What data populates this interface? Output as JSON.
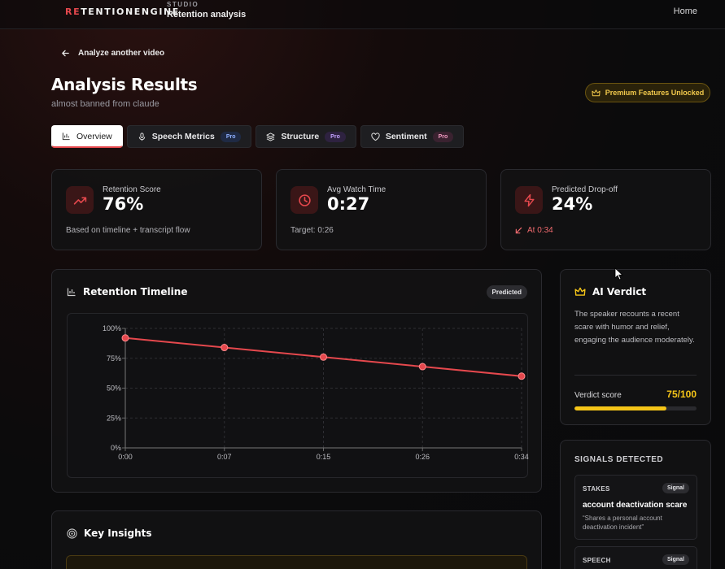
{
  "topbar": {
    "brand_accent": "RE",
    "brand_rest": "TENTIONENGINE",
    "studio_label": "STUDIO",
    "section": "Retention analysis",
    "home_label": "Home"
  },
  "header": {
    "back_label": "Analyze another video",
    "title": "Analysis Results",
    "subtitle": "almost banned from claude",
    "premium_label": "Premium Features Unlocked"
  },
  "tabs": [
    {
      "label": "Overview",
      "icon": "bar-chart-icon",
      "active": true
    },
    {
      "label": "Speech Metrics",
      "icon": "mic-icon",
      "badge": "Pro"
    },
    {
      "label": "Structure",
      "icon": "layers-icon",
      "badge": "Pro"
    },
    {
      "label": "Sentiment",
      "icon": "heart-icon",
      "badge": "Pro"
    }
  ],
  "stats": [
    {
      "label": "Retention Score",
      "value": "76%",
      "note": "Based on timeline + transcript flow",
      "icon": "trending-up-icon"
    },
    {
      "label": "Avg Watch Time",
      "value": "0:27",
      "note": "Target: 0:26",
      "icon": "clock-icon"
    },
    {
      "label": "Predicted Drop-off",
      "value": "24%",
      "note": "At 0:34",
      "icon": "zap-icon"
    }
  ],
  "timeline": {
    "title": "Retention Timeline",
    "badge": "Predicted"
  },
  "chart_data": {
    "type": "line",
    "title": "",
    "xlabel": "",
    "ylabel": "",
    "x": [
      "0:00",
      "0:07",
      "0:15",
      "0:26",
      "0:34"
    ],
    "y_ticks": [
      "0%",
      "25%",
      "50%",
      "75%",
      "100%"
    ],
    "ylim": [
      0,
      100
    ],
    "grid": true,
    "series": [
      {
        "values": [
          92,
          84,
          76,
          68,
          60
        ],
        "color": "#e5484d"
      }
    ]
  },
  "verdict": {
    "title": "AI Verdict",
    "text": "The speaker recounts a recent scare with humor and relief, engaging the audience moderately.",
    "score_label": "Verdict score",
    "score_text": "75/100",
    "score_fraction": 0.75
  },
  "signals": {
    "title": "SIGNALS DETECTED",
    "items": [
      {
        "type": "STAKES",
        "badge": "Signal",
        "headline": "account deactivation scare",
        "quote": "“Shares a personal account deactivation incident”"
      },
      {
        "type": "SPEECH",
        "badge": "Signal"
      }
    ]
  },
  "insights": {
    "title": "Key Insights"
  },
  "colors": {
    "accent": "#e5484d",
    "gold": "#f5c518"
  }
}
